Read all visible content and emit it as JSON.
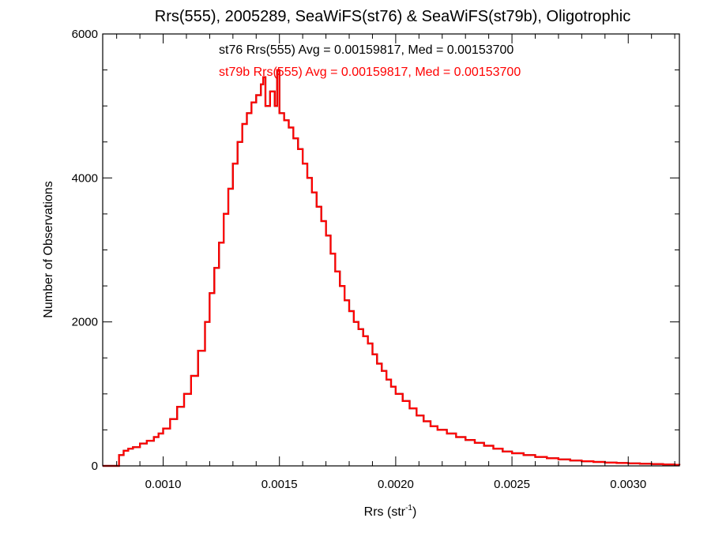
{
  "chart_data": {
    "type": "bar",
    "title": "Rrs(555), 2005289, SeaWiFS(st76) & SeaWiFS(st79b), Oligotrophic",
    "xlabel": {
      "base": "Rrs (str",
      "sup": "-1",
      "close": ")"
    },
    "ylabel": "Number of Observations",
    "xlim": [
      0.00074,
      0.00322
    ],
    "ylim": [
      0,
      6000
    ],
    "x_ticks": [
      {
        "value": 0.001,
        "label": "0.0010"
      },
      {
        "value": 0.0015,
        "label": "0.0015"
      },
      {
        "value": 0.002,
        "label": "0.0020"
      },
      {
        "value": 0.0025,
        "label": "0.0025"
      },
      {
        "value": 0.003,
        "label": "0.0030"
      }
    ],
    "x_minor_step": 0.0001,
    "y_ticks": [
      {
        "value": 0,
        "label": "0"
      },
      {
        "value": 2000,
        "label": "2000"
      },
      {
        "value": 4000,
        "label": "4000"
      },
      {
        "value": 6000,
        "label": "6000"
      }
    ],
    "y_minor_step": 500,
    "grid": false,
    "annotations": [
      {
        "text": "st76 Rrs(555) Avg = 0.00159817, Med = 0.00153700",
        "color": "#000000"
      },
      {
        "text": "st79b Rrs(555) Avg = 0.00159817, Med = 0.00153700",
        "color": "#ff0000"
      }
    ],
    "series": [
      {
        "name": "st76",
        "color": "#000000",
        "points": [
          [
            0.00074,
            0
          ],
          [
            0.0008,
            0
          ],
          [
            0.00081,
            150
          ],
          [
            0.00083,
            210
          ],
          [
            0.00085,
            240
          ],
          [
            0.00087,
            260
          ],
          [
            0.0009,
            310
          ],
          [
            0.00093,
            350
          ],
          [
            0.00096,
            400
          ],
          [
            0.00098,
            450
          ],
          [
            0.001,
            520
          ],
          [
            0.00103,
            650
          ],
          [
            0.00106,
            820
          ],
          [
            0.00109,
            1000
          ],
          [
            0.00112,
            1250
          ],
          [
            0.00115,
            1600
          ],
          [
            0.00118,
            2000
          ],
          [
            0.0012,
            2400
          ],
          [
            0.00122,
            2750
          ],
          [
            0.00124,
            3100
          ],
          [
            0.00126,
            3500
          ],
          [
            0.00128,
            3850
          ],
          [
            0.0013,
            4200
          ],
          [
            0.00132,
            4500
          ],
          [
            0.00134,
            4750
          ],
          [
            0.00136,
            4900
          ],
          [
            0.00138,
            5050
          ],
          [
            0.0014,
            5150
          ],
          [
            0.00142,
            5300
          ],
          [
            0.00143,
            5400
          ],
          [
            0.00144,
            5000
          ],
          [
            0.00146,
            5200
          ],
          [
            0.00148,
            5000
          ],
          [
            0.00149,
            5500
          ],
          [
            0.0015,
            4900
          ],
          [
            0.00152,
            4800
          ],
          [
            0.00154,
            4700
          ],
          [
            0.00156,
            4550
          ],
          [
            0.00158,
            4400
          ],
          [
            0.0016,
            4200
          ],
          [
            0.00162,
            4000
          ],
          [
            0.00164,
            3800
          ],
          [
            0.00166,
            3600
          ],
          [
            0.00168,
            3400
          ],
          [
            0.0017,
            3200
          ],
          [
            0.00172,
            2950
          ],
          [
            0.00174,
            2700
          ],
          [
            0.00176,
            2500
          ],
          [
            0.00178,
            2300
          ],
          [
            0.0018,
            2150
          ],
          [
            0.00182,
            2000
          ],
          [
            0.00184,
            1900
          ],
          [
            0.00186,
            1800
          ],
          [
            0.00188,
            1700
          ],
          [
            0.0019,
            1550
          ],
          [
            0.00192,
            1420
          ],
          [
            0.00194,
            1320
          ],
          [
            0.00196,
            1200
          ],
          [
            0.00198,
            1100
          ],
          [
            0.002,
            1000
          ],
          [
            0.00203,
            900
          ],
          [
            0.00206,
            800
          ],
          [
            0.00209,
            700
          ],
          [
            0.00212,
            620
          ],
          [
            0.00215,
            550
          ],
          [
            0.00218,
            500
          ],
          [
            0.00222,
            450
          ],
          [
            0.00226,
            400
          ],
          [
            0.0023,
            360
          ],
          [
            0.00234,
            320
          ],
          [
            0.00238,
            280
          ],
          [
            0.00242,
            240
          ],
          [
            0.00246,
            200
          ],
          [
            0.0025,
            175
          ],
          [
            0.00255,
            150
          ],
          [
            0.0026,
            125
          ],
          [
            0.00265,
            105
          ],
          [
            0.0027,
            90
          ],
          [
            0.00275,
            75
          ],
          [
            0.0028,
            65
          ],
          [
            0.00285,
            55
          ],
          [
            0.0029,
            45
          ],
          [
            0.00295,
            40
          ],
          [
            0.003,
            35
          ],
          [
            0.00305,
            30
          ],
          [
            0.0031,
            25
          ],
          [
            0.00315,
            20
          ],
          [
            0.0032,
            15
          ],
          [
            0.00322,
            10
          ]
        ]
      },
      {
        "name": "st79b",
        "color": "#ff0000",
        "points": [
          [
            0.00074,
            0
          ],
          [
            0.0008,
            0
          ],
          [
            0.00081,
            150
          ],
          [
            0.00083,
            210
          ],
          [
            0.00085,
            240
          ],
          [
            0.00087,
            260
          ],
          [
            0.0009,
            310
          ],
          [
            0.00093,
            350
          ],
          [
            0.00096,
            400
          ],
          [
            0.00098,
            450
          ],
          [
            0.001,
            520
          ],
          [
            0.00103,
            650
          ],
          [
            0.00106,
            820
          ],
          [
            0.00109,
            1000
          ],
          [
            0.00112,
            1250
          ],
          [
            0.00115,
            1600
          ],
          [
            0.00118,
            2000
          ],
          [
            0.0012,
            2400
          ],
          [
            0.00122,
            2750
          ],
          [
            0.00124,
            3100
          ],
          [
            0.00126,
            3500
          ],
          [
            0.00128,
            3850
          ],
          [
            0.0013,
            4200
          ],
          [
            0.00132,
            4500
          ],
          [
            0.00134,
            4750
          ],
          [
            0.00136,
            4900
          ],
          [
            0.00138,
            5050
          ],
          [
            0.0014,
            5150
          ],
          [
            0.00142,
            5300
          ],
          [
            0.00143,
            5400
          ],
          [
            0.00144,
            5000
          ],
          [
            0.00146,
            5200
          ],
          [
            0.00148,
            5000
          ],
          [
            0.00149,
            5500
          ],
          [
            0.0015,
            4900
          ],
          [
            0.00152,
            4800
          ],
          [
            0.00154,
            4700
          ],
          [
            0.00156,
            4550
          ],
          [
            0.00158,
            4400
          ],
          [
            0.0016,
            4200
          ],
          [
            0.00162,
            4000
          ],
          [
            0.00164,
            3800
          ],
          [
            0.00166,
            3600
          ],
          [
            0.00168,
            3400
          ],
          [
            0.0017,
            3200
          ],
          [
            0.00172,
            2950
          ],
          [
            0.00174,
            2700
          ],
          [
            0.00176,
            2500
          ],
          [
            0.00178,
            2300
          ],
          [
            0.0018,
            2150
          ],
          [
            0.00182,
            2000
          ],
          [
            0.00184,
            1900
          ],
          [
            0.00186,
            1800
          ],
          [
            0.00188,
            1700
          ],
          [
            0.0019,
            1550
          ],
          [
            0.00192,
            1420
          ],
          [
            0.00194,
            1320
          ],
          [
            0.00196,
            1200
          ],
          [
            0.00198,
            1100
          ],
          [
            0.002,
            1000
          ],
          [
            0.00203,
            900
          ],
          [
            0.00206,
            800
          ],
          [
            0.00209,
            700
          ],
          [
            0.00212,
            620
          ],
          [
            0.00215,
            550
          ],
          [
            0.00218,
            500
          ],
          [
            0.00222,
            450
          ],
          [
            0.00226,
            400
          ],
          [
            0.0023,
            360
          ],
          [
            0.00234,
            320
          ],
          [
            0.00238,
            280
          ],
          [
            0.00242,
            240
          ],
          [
            0.00246,
            200
          ],
          [
            0.0025,
            175
          ],
          [
            0.00255,
            150
          ],
          [
            0.0026,
            125
          ],
          [
            0.00265,
            105
          ],
          [
            0.0027,
            90
          ],
          [
            0.00275,
            75
          ],
          [
            0.0028,
            65
          ],
          [
            0.00285,
            55
          ],
          [
            0.0029,
            45
          ],
          [
            0.00295,
            40
          ],
          [
            0.003,
            35
          ],
          [
            0.00305,
            30
          ],
          [
            0.0031,
            25
          ],
          [
            0.00315,
            20
          ],
          [
            0.0032,
            15
          ],
          [
            0.00322,
            10
          ]
        ]
      }
    ]
  }
}
